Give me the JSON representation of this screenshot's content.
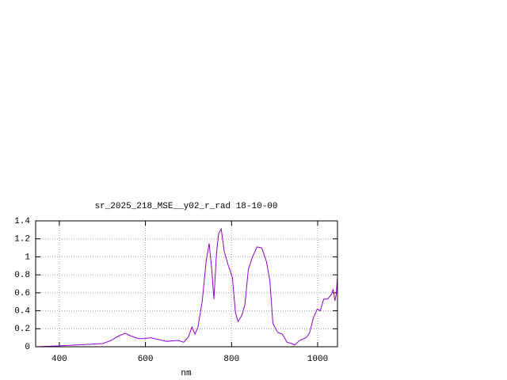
{
  "chart_data": {
    "type": "line",
    "title": "sr_2025_218_MSE__y02_r_rad 18-10-00",
    "x_label": "nm",
    "x": [
      345,
      400,
      501,
      520,
      538,
      553,
      566,
      584,
      597,
      612,
      630,
      649,
      676,
      689,
      700,
      708,
      715,
      722,
      732,
      741,
      748,
      754,
      759,
      765,
      770,
      776,
      783,
      792,
      802,
      809,
      815,
      824,
      831,
      839,
      848,
      859,
      870,
      881,
      889,
      896,
      907,
      918,
      929,
      940,
      947,
      958,
      973,
      981,
      990,
      999,
      1006,
      1014,
      1023,
      1032,
      1036,
      1040,
      1043,
      1046
    ],
    "series": [
      {
        "color": "#9400d3",
        "values": [
          0,
          0.01,
          0.035,
          0.07,
          0.12,
          0.15,
          0.12,
          0.09,
          0.09,
          0.1,
          0.08,
          0.06,
          0.07,
          0.05,
          0.11,
          0.22,
          0.14,
          0.22,
          0.51,
          0.95,
          1.15,
          0.86,
          0.53,
          1.04,
          1.26,
          1.31,
          1.06,
          0.91,
          0.77,
          0.38,
          0.28,
          0.35,
          0.47,
          0.86,
          0.99,
          1.11,
          1.1,
          0.95,
          0.73,
          0.26,
          0.16,
          0.14,
          0.05,
          0.035,
          0.02,
          0.07,
          0.1,
          0.15,
          0.32,
          0.42,
          0.4,
          0.53,
          0.53,
          0.58,
          0.64,
          0.51,
          0.58,
          0.77
        ]
      }
    ],
    "xlim": [
      345,
      1046
    ],
    "xticks": [
      400,
      600,
      800,
      1000
    ],
    "ylim": [
      0,
      1.4
    ],
    "yticks": [
      0,
      0.2,
      0.4,
      0.6,
      0.8,
      1,
      1.2,
      1.4
    ],
    "grid": true
  }
}
